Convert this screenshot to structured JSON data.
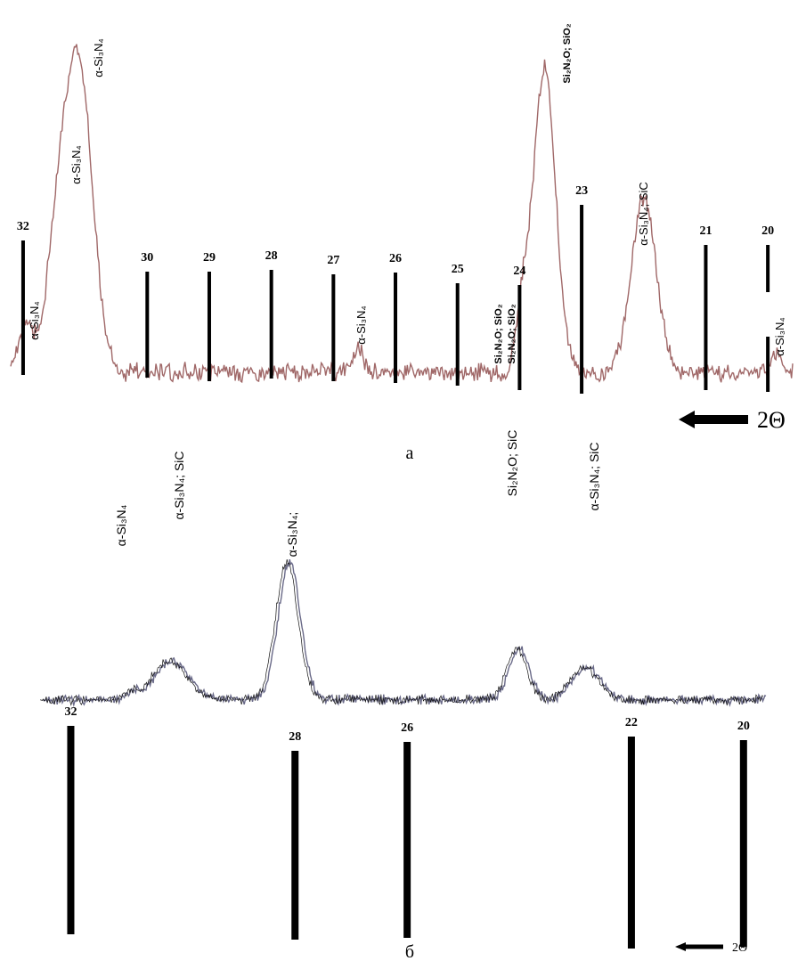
{
  "chart_data": [
    {
      "type": "line",
      "caption": "а",
      "axis_label": "2Θ",
      "axis_direction": "right-to-left",
      "xlim": [
        19.6,
        32.2
      ],
      "ticks": [
        {
          "value": 32,
          "label": "32"
        },
        {
          "value": 30,
          "label": "30"
        },
        {
          "value": 29,
          "label": "29"
        },
        {
          "value": 28,
          "label": "28"
        },
        {
          "value": 27,
          "label": "27"
        },
        {
          "value": 26,
          "label": "26"
        },
        {
          "value": 25,
          "label": "25"
        },
        {
          "value": 24,
          "label": "24"
        },
        {
          "value": 23,
          "label": "23"
        },
        {
          "value": 21,
          "label": "21"
        },
        {
          "value": 20,
          "label": "20"
        }
      ],
      "peaks": [
        {
          "x": 31.1,
          "height": 1.0,
          "width": 0.22,
          "label": "α-Si3N4"
        },
        {
          "x": 31.45,
          "height": 0.38,
          "width": 0.18,
          "label": "α-Si3N4"
        },
        {
          "x": 31.95,
          "height": 0.15,
          "width": 0.12,
          "label": "α-Si3N4"
        },
        {
          "x": 26.6,
          "height": 0.08,
          "width": 0.08,
          "label": "α-Si3N4"
        },
        {
          "x": 23.6,
          "height": 1.0,
          "width": 0.18,
          "label": "Si2N2O; SiO2"
        },
        {
          "x": 23.95,
          "height": 0.18,
          "width": 0.1,
          "label": "Si2N2O; SiO2"
        },
        {
          "x": 22.0,
          "height": 0.58,
          "width": 0.2,
          "label": "α-Si3N4; SiC"
        },
        {
          "x": 19.85,
          "height": 0.07,
          "width": 0.08,
          "label": "α-Si3N4"
        }
      ],
      "baseline": 0.05
    },
    {
      "type": "line",
      "caption": "б",
      "axis_label": "2Θ",
      "axis_direction": "right-to-left",
      "xlim": [
        19.6,
        32.5
      ],
      "ticks": [
        {
          "value": 32,
          "label": "32"
        },
        {
          "value": 28,
          "label": "28"
        },
        {
          "value": 26,
          "label": "26"
        },
        {
          "value": 22,
          "label": "22"
        },
        {
          "value": 20,
          "label": "20"
        }
      ],
      "peaks": [
        {
          "x": 28.1,
          "height": 1.0,
          "width": 0.2,
          "label": "α-Si3N4;"
        },
        {
          "x": 30.2,
          "height": 0.28,
          "width": 0.3,
          "label": "α-Si3N4; SiC"
        },
        {
          "x": 30.9,
          "height": 0.05,
          "width": 0.1,
          "label": "α-Si3N4"
        },
        {
          "x": 24.0,
          "height": 0.37,
          "width": 0.18,
          "label": "Si2N2O; SiC"
        },
        {
          "x": 22.8,
          "height": 0.23,
          "width": 0.25,
          "label": "α-Si3N4; SiC"
        }
      ],
      "baseline": 0.06
    }
  ],
  "colors": {
    "trace_a": "#a06868",
    "trace_b": "#6a6a88",
    "marker": "#000000"
  }
}
